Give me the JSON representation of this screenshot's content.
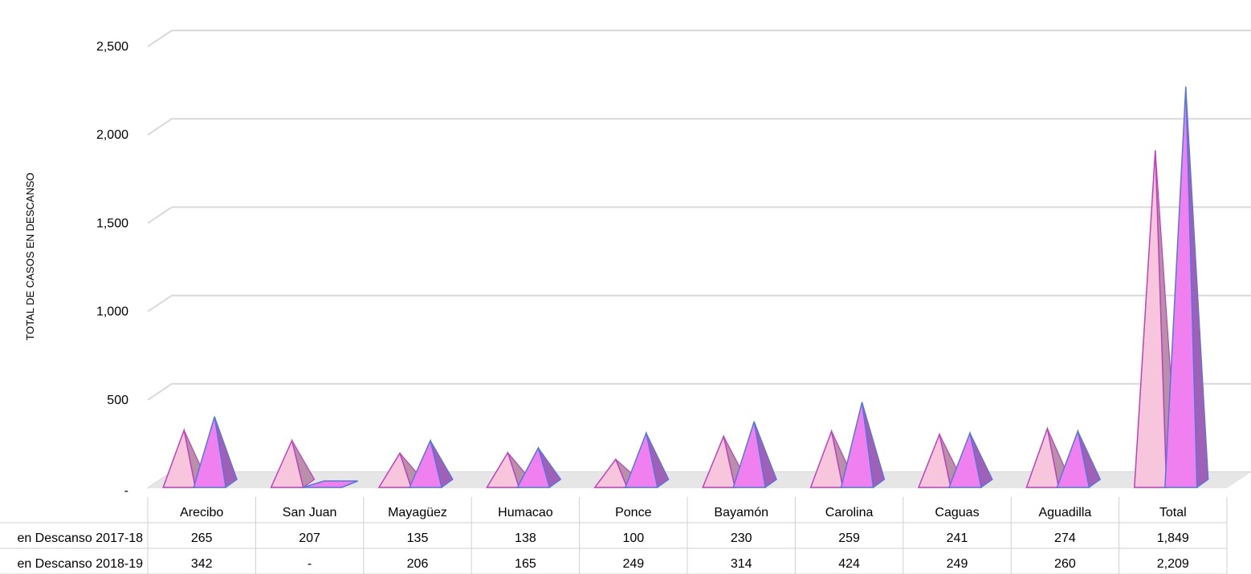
{
  "chart_data": {
    "type": "bar",
    "categories": [
      "Arecibo",
      "San Juan",
      "Mayagüez",
      "Humacao",
      "Ponce",
      "Bayamón",
      "Carolina",
      "Caguas",
      "Aguadilla",
      "Total"
    ],
    "series": [
      {
        "name": "en Descanso 2017-18",
        "values": [
          265,
          207,
          135,
          138,
          100,
          230,
          259,
          241,
          274,
          1849
        ],
        "labels": [
          "265",
          "207",
          "135",
          "138",
          "100",
          "230",
          "259",
          "241",
          "274",
          "1,849"
        ],
        "color": "#f7c6dc",
        "edge": "#c03fc0"
      },
      {
        "name": "en Descanso 2018-19",
        "values": [
          342,
          0,
          206,
          165,
          249,
          314,
          424,
          249,
          260,
          2209
        ],
        "labels": [
          "342",
          "-",
          "206",
          "165",
          "249",
          "314",
          "424",
          "249",
          "260",
          "2,209"
        ],
        "color": "#f080f0",
        "edge": "#5577dd"
      }
    ],
    "ylabel": "TOTAL DE CASOS EN DESCANSO",
    "ylim": [
      0,
      2500
    ],
    "yticks": [
      0,
      500,
      1000,
      1500,
      2000,
      2500
    ],
    "ytick_labels": [
      "-",
      "500",
      "1,000",
      "1,500",
      "2,000",
      "2,500"
    ],
    "grid": true,
    "data_table": true
  }
}
